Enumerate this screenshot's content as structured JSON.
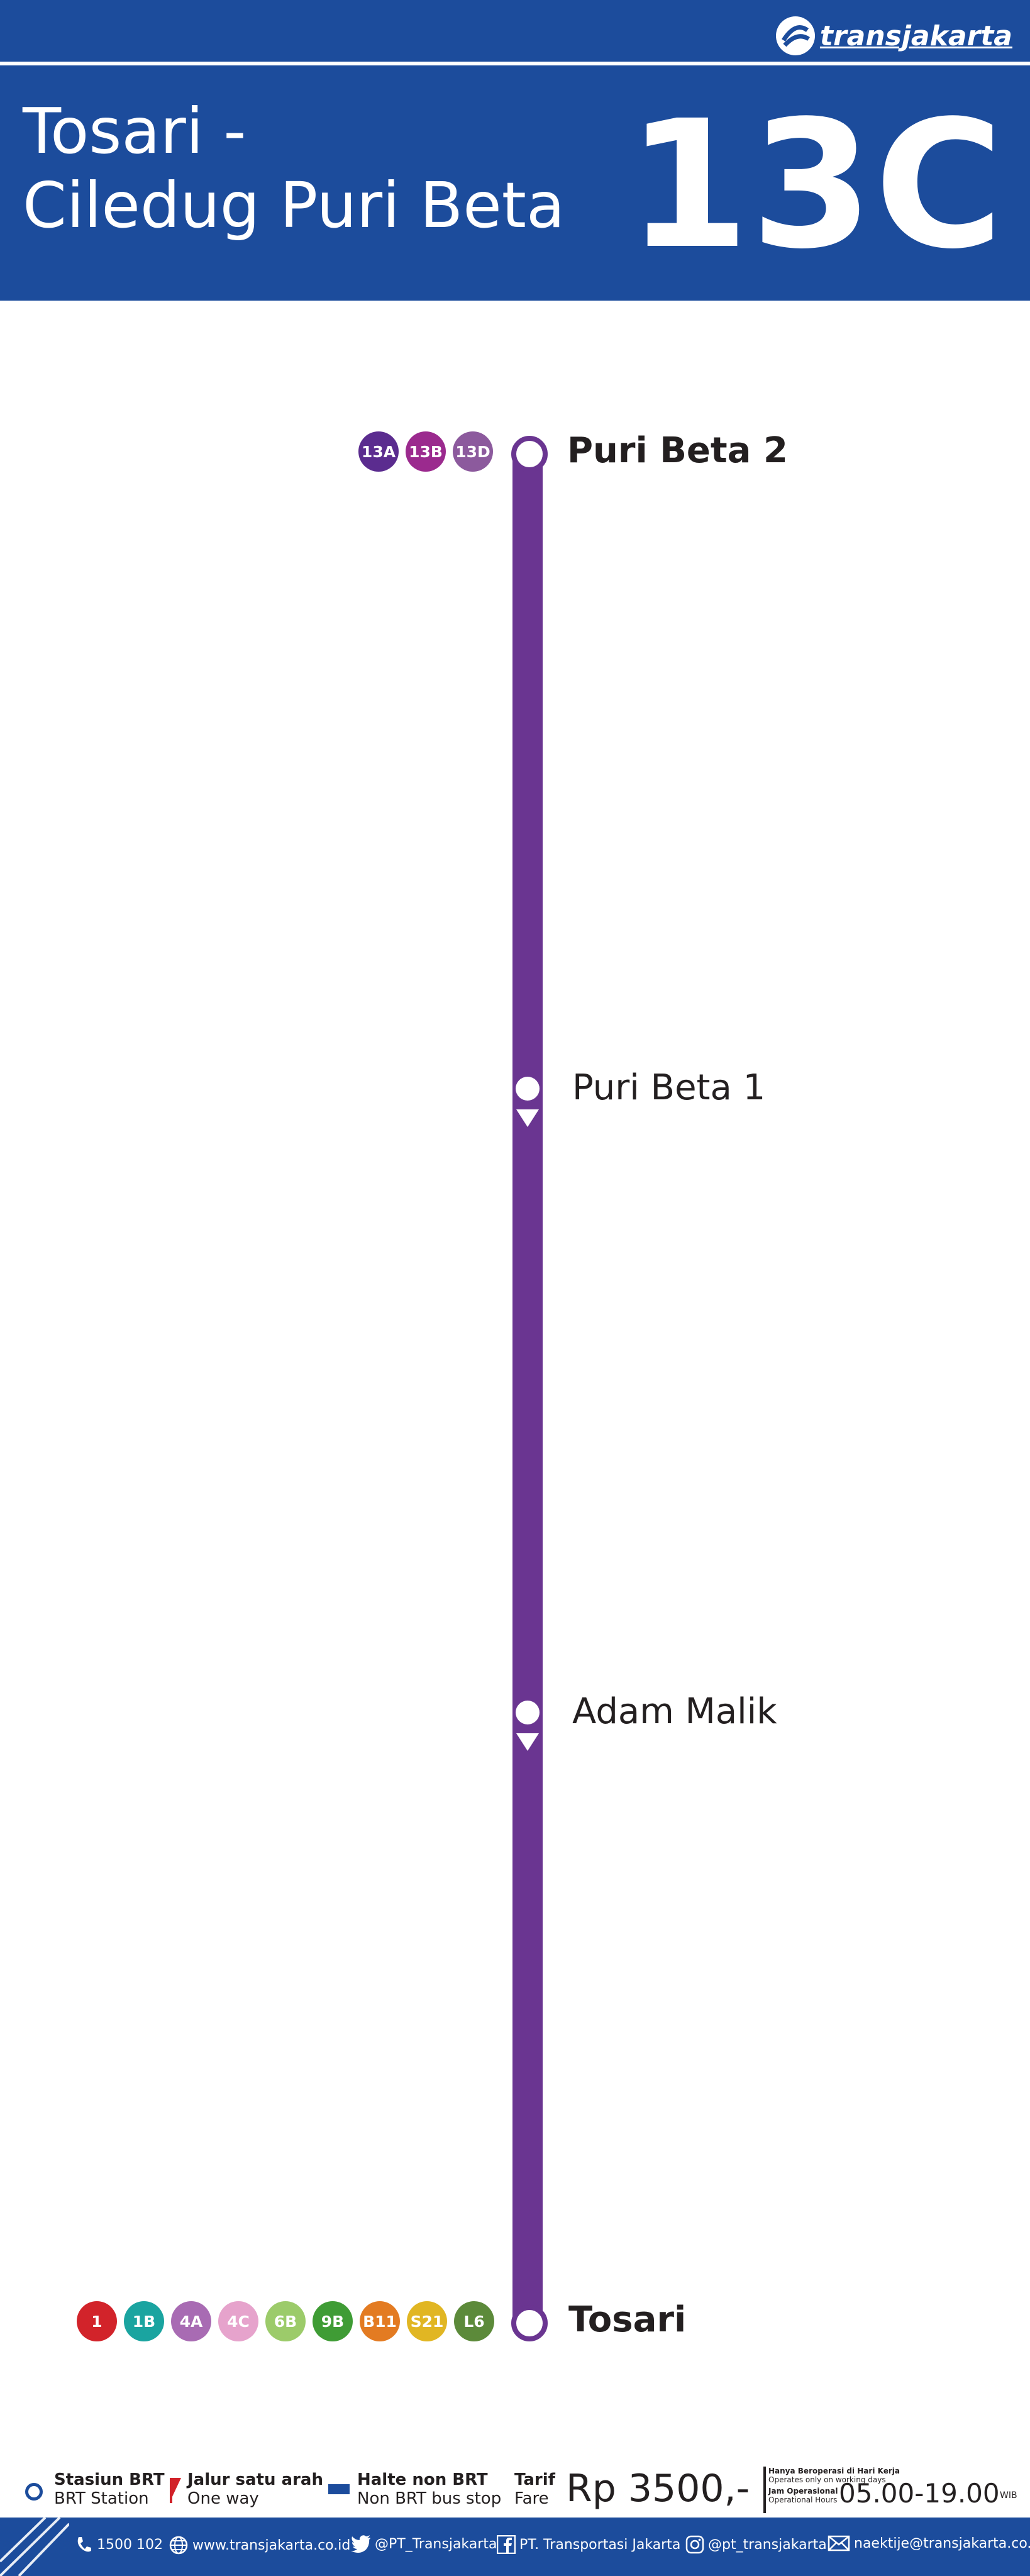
{
  "header": {
    "brand": "transjakarta",
    "route_title_line1": "Tosari -",
    "route_title_line2": "Ciledug Puri Beta",
    "route_code": "13C"
  },
  "colors": {
    "brand_blue": "#1c4c9c",
    "route_purple": "#6a3591"
  },
  "stations": [
    {
      "name": "Puri Beta 2",
      "type": "terminal",
      "transfers": [
        "13A",
        "13B",
        "13D"
      ]
    },
    {
      "name": "Puri Beta 1",
      "type": "one-way-stop",
      "transfers": []
    },
    {
      "name": "Adam Malik",
      "type": "one-way-stop",
      "transfers": []
    },
    {
      "name": "Tosari",
      "type": "terminal",
      "transfers": [
        "1",
        "1B",
        "4A",
        "4C",
        "6B",
        "9B",
        "B11",
        "S21",
        "L6"
      ]
    }
  ],
  "transfer_colors": {
    "13A": "#5b2c8f",
    "13B": "#9b2a8e",
    "13D": "#8c5a9d",
    "1": "#d2232a",
    "1B": "#1aa4a0",
    "4A": "#a86bb3",
    "4C": "#e6a3cc",
    "6B": "#9ccb6a",
    "9B": "#3f9c35",
    "B11": "#e37b22",
    "S21": "#e1b623",
    "L6": "#5c8a3a"
  },
  "legend": {
    "brt_station_id": "Stasiun BRT",
    "brt_station_en": "BRT Station",
    "one_way_id": "Jalur satu arah",
    "one_way_en": "One way",
    "non_brt_id": "Halte non BRT",
    "non_brt_en": "Non BRT bus stop",
    "fare_id": "Tarif",
    "fare_en": "Fare",
    "fare_amount": "Rp 3500,-",
    "workdays_id": "Hanya Beroperasi di Hari Kerja",
    "workdays_en": "Operates only on working days",
    "hours_label_id": "Jam Operasional",
    "hours_label_en": "Operational Hours",
    "hours": "05.00-19.00",
    "timezone": "WIB"
  },
  "contacts": {
    "phone": "1500 102",
    "website": "www.transjakarta.co.id",
    "twitter": "@PT_Transjakarta",
    "facebook": "PT. Transportasi Jakarta",
    "instagram": "@pt_transjakarta",
    "email": "naektije@transjakarta.co.id"
  }
}
